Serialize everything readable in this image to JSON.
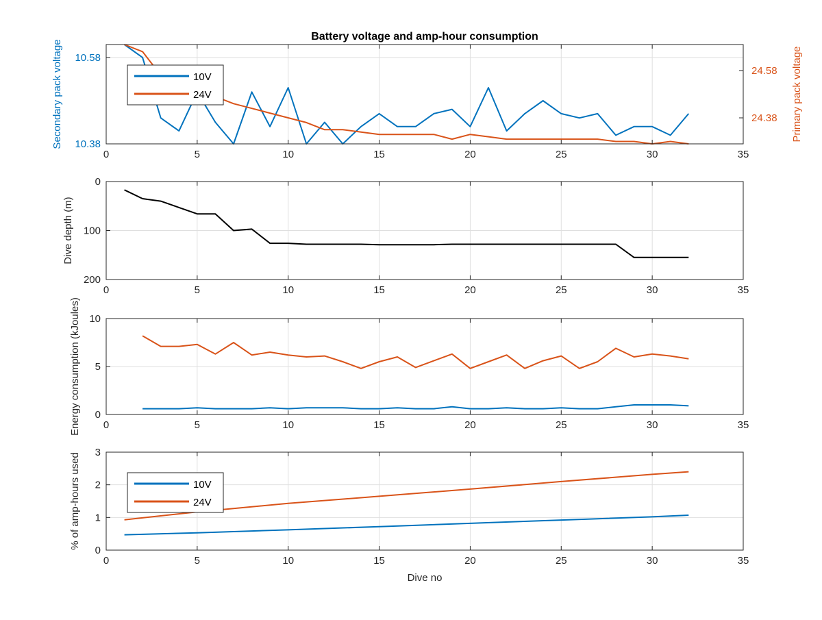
{
  "colors": {
    "v10": "#0072BD",
    "v24": "#D95319",
    "depth": "#000000",
    "axis": "#262626",
    "grid": "#DFDFDF"
  },
  "chart_data": [
    {
      "type": "line",
      "title": "Battery voltage and amp-hour consumption",
      "xlabel": "",
      "ylabel_left": "Secondary pack voltage",
      "ylabel_right": "Primary pack voltage",
      "xlim": [
        0,
        35
      ],
      "xticks": [
        0,
        5,
        10,
        15,
        20,
        25,
        30,
        35
      ],
      "ylim_left": [
        10.38,
        10.61
      ],
      "yticks_left": [
        10.38,
        10.58
      ],
      "ylim_right": [
        24.27,
        24.69
      ],
      "yticks_right": [
        24.38,
        24.58
      ],
      "grid": true,
      "legend": {
        "placement": "top-left",
        "entries": [
          "10V",
          "24V"
        ]
      },
      "series": [
        {
          "name": "10V",
          "axis": "left",
          "x": [
            1,
            2,
            3,
            4,
            5,
            6,
            7,
            8,
            9,
            10,
            11,
            12,
            13,
            14,
            15,
            16,
            17,
            18,
            19,
            20,
            21,
            22,
            23,
            24,
            25,
            26,
            27,
            28,
            29,
            30,
            31,
            32
          ],
          "y": [
            10.61,
            10.58,
            10.44,
            10.41,
            10.5,
            10.43,
            10.38,
            10.5,
            10.42,
            10.51,
            10.38,
            10.43,
            10.38,
            10.42,
            10.45,
            10.42,
            10.42,
            10.45,
            10.46,
            10.42,
            10.51,
            10.41,
            10.45,
            10.48,
            10.45,
            10.44,
            10.45,
            10.4,
            10.42,
            10.42,
            10.4,
            10.45
          ]
        },
        {
          "name": "24V",
          "axis": "right",
          "x": [
            1,
            2,
            3,
            4,
            5,
            6,
            7,
            8,
            9,
            10,
            11,
            12,
            13,
            14,
            15,
            16,
            17,
            18,
            19,
            20,
            21,
            22,
            23,
            24,
            25,
            26,
            27,
            28,
            29,
            30,
            31,
            32
          ],
          "y": [
            24.69,
            24.66,
            24.56,
            24.52,
            24.5,
            24.47,
            24.44,
            24.42,
            24.4,
            24.38,
            24.36,
            24.33,
            24.33,
            24.32,
            24.31,
            24.31,
            24.31,
            24.31,
            24.29,
            24.31,
            24.3,
            24.29,
            24.29,
            24.29,
            24.29,
            24.29,
            24.29,
            24.28,
            24.28,
            24.27,
            24.28,
            24.27
          ]
        }
      ]
    },
    {
      "type": "line",
      "title": "",
      "xlabel": "",
      "ylabel": "Dive depth (m)",
      "xlim": [
        0,
        35
      ],
      "xticks": [
        0,
        5,
        10,
        15,
        20,
        25,
        30,
        35
      ],
      "ylim": [
        0,
        200
      ],
      "y_reversed": true,
      "yticks": [
        0,
        100,
        200
      ],
      "grid": true,
      "series": [
        {
          "x": [
            1,
            2,
            3,
            4,
            5,
            6,
            7,
            8,
            9,
            10,
            11,
            12,
            13,
            14,
            15,
            16,
            17,
            18,
            19,
            20,
            21,
            22,
            23,
            24,
            25,
            26,
            27,
            28,
            29,
            30,
            31,
            32
          ],
          "y": [
            17,
            35,
            40,
            53,
            66,
            66,
            100,
            97,
            126,
            126,
            128,
            128,
            128,
            128,
            129,
            129,
            129,
            129,
            128,
            128,
            128,
            128,
            128,
            128,
            128,
            128,
            128,
            128,
            155,
            155,
            155,
            155
          ]
        }
      ]
    },
    {
      "type": "line",
      "title": "",
      "xlabel": "",
      "ylabel": "Energy consumption (kJoules)",
      "xlim": [
        0,
        35
      ],
      "xticks": [
        0,
        5,
        10,
        15,
        20,
        25,
        30,
        35
      ],
      "ylim": [
        0,
        10
      ],
      "yticks": [
        0,
        5,
        10
      ],
      "grid": true,
      "series": [
        {
          "x": [
            2,
            3,
            4,
            5,
            6,
            7,
            8,
            9,
            10,
            11,
            12,
            13,
            14,
            15,
            16,
            17,
            18,
            19,
            20,
            21,
            22,
            23,
            24,
            25,
            26,
            27,
            28,
            29,
            30,
            31,
            32
          ],
          "y": [
            0.6,
            0.6,
            0.6,
            0.7,
            0.6,
            0.6,
            0.6,
            0.7,
            0.6,
            0.7,
            0.7,
            0.7,
            0.6,
            0.6,
            0.7,
            0.6,
            0.6,
            0.8,
            0.6,
            0.6,
            0.7,
            0.6,
            0.6,
            0.7,
            0.6,
            0.6,
            0.8,
            1.0,
            1.0,
            1.0,
            0.9
          ]
        },
        {
          "x": [
            2,
            3,
            4,
            5,
            6,
            7,
            8,
            9,
            10,
            11,
            12,
            13,
            14,
            15,
            16,
            17,
            18,
            19,
            20,
            21,
            22,
            23,
            24,
            25,
            26,
            27,
            28,
            29,
            30,
            31,
            32
          ],
          "y": [
            8.2,
            7.1,
            7.1,
            7.3,
            6.3,
            7.5,
            6.2,
            6.5,
            6.2,
            6.0,
            6.1,
            5.5,
            4.8,
            5.5,
            6.0,
            4.9,
            5.6,
            6.3,
            4.8,
            5.5,
            6.2,
            4.8,
            5.6,
            6.1,
            4.8,
            5.5,
            6.9,
            6.0,
            6.3,
            6.1,
            5.8
          ]
        }
      ]
    },
    {
      "type": "line",
      "title": "",
      "xlabel": "Dive no",
      "ylabel": "% of amp-hours used",
      "xlim": [
        0,
        35
      ],
      "xticks": [
        0,
        5,
        10,
        15,
        20,
        25,
        30,
        35
      ],
      "ylim": [
        0,
        3
      ],
      "yticks": [
        0,
        1,
        2,
        3
      ],
      "grid": true,
      "legend": {
        "placement": "middle-left",
        "entries": [
          "10V",
          "24V"
        ]
      },
      "series": [
        {
          "name": "10V",
          "x": [
            1,
            5,
            10,
            15,
            20,
            25,
            30,
            32
          ],
          "y": [
            0.47,
            0.53,
            0.62,
            0.72,
            0.82,
            0.92,
            1.02,
            1.07
          ]
        },
        {
          "name": "24V",
          "x": [
            1,
            5,
            10,
            15,
            20,
            25,
            30,
            32
          ],
          "y": [
            0.93,
            1.17,
            1.43,
            1.65,
            1.87,
            2.1,
            2.32,
            2.4
          ]
        }
      ]
    }
  ]
}
